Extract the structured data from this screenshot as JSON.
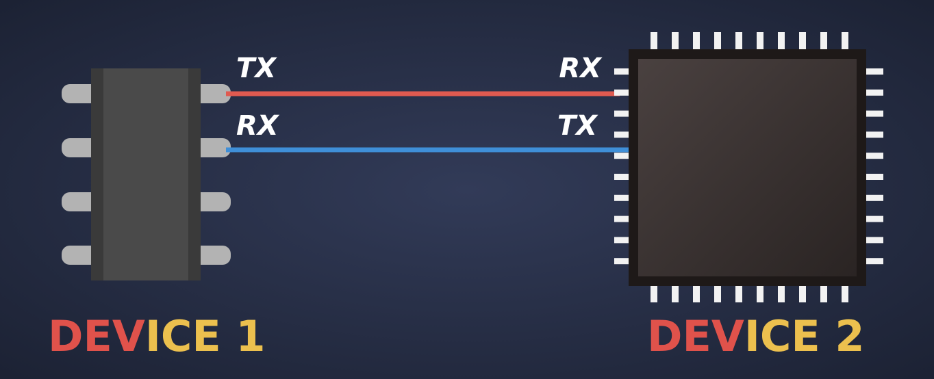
{
  "device1": {
    "ports": [
      "TX",
      "RX"
    ],
    "label": [
      "DEV",
      "ICE 1"
    ]
  },
  "device2": {
    "ports": [
      "RX",
      "TX"
    ],
    "label": [
      "DEV",
      "ICE 2"
    ]
  }
}
